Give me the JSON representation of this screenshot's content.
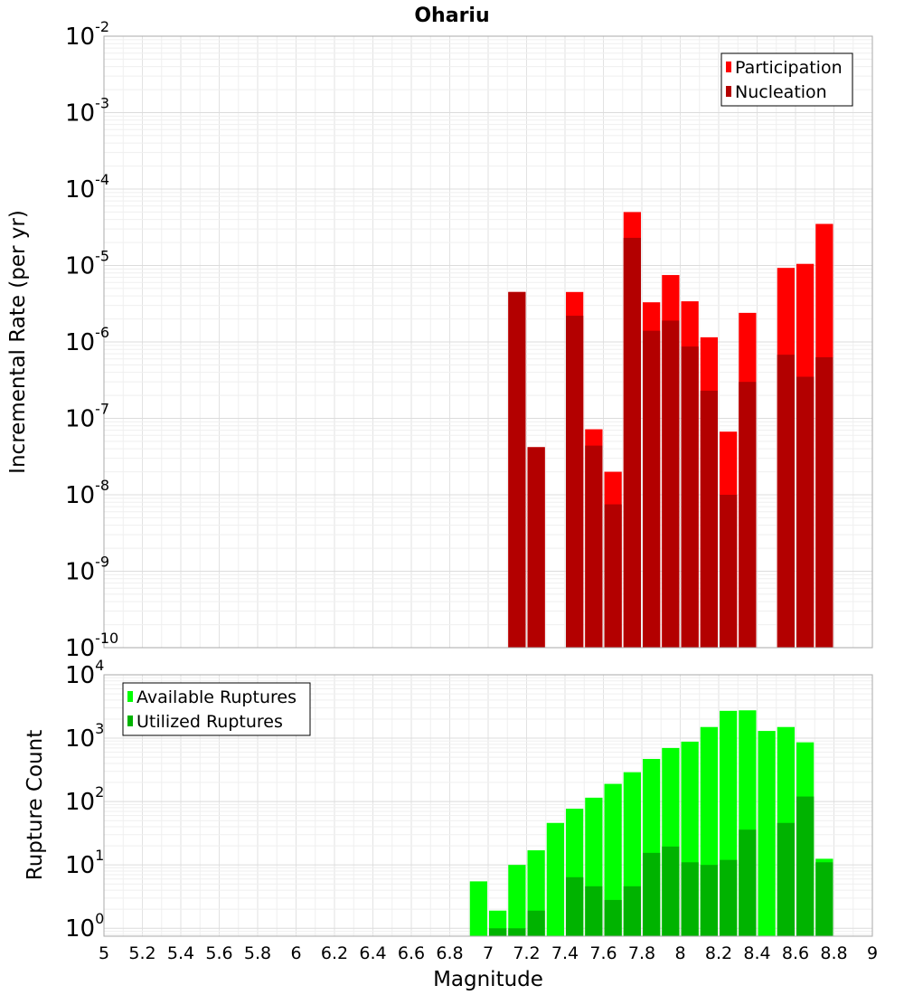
{
  "chart_data": [
    {
      "type": "bar",
      "title": "Ohariu",
      "xlabel": "",
      "ylabel": "Incremental Rate (per yr)",
      "yscale": "log",
      "ylim": [
        1e-10,
        0.01
      ],
      "xlim": [
        5,
        9
      ],
      "y_tick_exponents": [
        "-10",
        "-9",
        "-8",
        "-7",
        "-6",
        "-5",
        "-4",
        "-3",
        "-2"
      ],
      "y_tick_base": "10",
      "grid": true,
      "legend_position": "top-right",
      "bin_width": 0.1,
      "series": [
        {
          "name": "Participation",
          "color": "#ff0000",
          "x": [
            7.15,
            7.25,
            7.45,
            7.55,
            7.65,
            7.75,
            7.85,
            7.95,
            8.05,
            8.15,
            8.25,
            8.35,
            8.55,
            8.65,
            8.75
          ],
          "values": [
            4.5e-06,
            4.2e-08,
            4.5e-06,
            7.2e-08,
            2e-08,
            5e-05,
            3.3e-06,
            7.5e-06,
            3.4e-06,
            1.15e-06,
            6.7e-08,
            2.4e-06,
            9.3e-06,
            1.05e-05,
            3.5e-05
          ]
        },
        {
          "name": "Nucleation",
          "color": "#b30000",
          "x": [
            7.15,
            7.25,
            7.45,
            7.55,
            7.65,
            7.75,
            7.85,
            7.95,
            8.05,
            8.15,
            8.25,
            8.35,
            8.55,
            8.65,
            8.75
          ],
          "values": [
            4.5e-06,
            4.2e-08,
            2.2e-06,
            4.4e-08,
            7.5e-09,
            2.3e-05,
            1.4e-06,
            1.9e-06,
            8.7e-07,
            2.3e-07,
            1e-08,
            3e-07,
            6.8e-07,
            3.5e-07,
            6.3e-07
          ]
        }
      ]
    },
    {
      "type": "bar",
      "title": "",
      "xlabel": "Magnitude",
      "ylabel": "Rupture Count",
      "yscale": "log",
      "ylim": [
        0.75,
        10000.0
      ],
      "xlim": [
        5,
        9
      ],
      "y_tick_exponents": [
        "0",
        "1",
        "2",
        "3",
        "4"
      ],
      "y_tick_base": "10",
      "x_tick_labels": [
        "5",
        "5.2",
        "5.4",
        "5.6",
        "5.8",
        "6",
        "6.2",
        "6.4",
        "6.6",
        "6.8",
        "7",
        "7.2",
        "7.4",
        "7.6",
        "7.8",
        "8",
        "8.2",
        "8.4",
        "8.6",
        "8.8",
        "9"
      ],
      "grid": true,
      "legend_position": "top-left",
      "bin_width": 0.1,
      "series": [
        {
          "name": "Available Ruptures",
          "color": "#00ff00",
          "x": [
            6.95,
            7.05,
            7.15,
            7.25,
            7.35,
            7.45,
            7.55,
            7.65,
            7.75,
            7.85,
            7.95,
            8.05,
            8.15,
            8.25,
            8.35,
            8.45,
            8.55,
            8.65,
            8.75
          ],
          "values": [
            5.5,
            1.9,
            10,
            17,
            46,
            77,
            115,
            190,
            290,
            470,
            700,
            880,
            1500,
            2700,
            2750,
            1300,
            1500,
            860,
            12.5
          ]
        },
        {
          "name": "Utilized Ruptures",
          "color": "#00b300",
          "x": [
            7.05,
            7.15,
            7.25,
            7.45,
            7.55,
            7.65,
            7.75,
            7.85,
            7.95,
            8.05,
            8.15,
            8.25,
            8.35,
            8.55,
            8.65,
            8.75
          ],
          "values": [
            1,
            1,
            1.9,
            6.4,
            4.6,
            2.8,
            4.6,
            15.5,
            19.5,
            11,
            10,
            12,
            36,
            46,
            120,
            11
          ]
        }
      ]
    }
  ]
}
